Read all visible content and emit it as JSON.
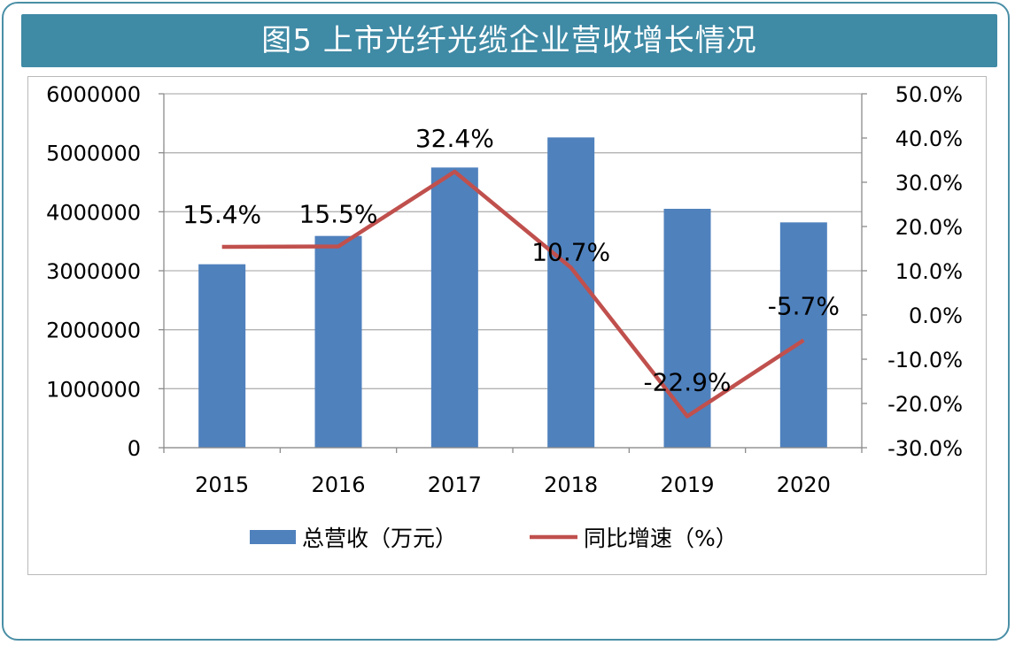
{
  "title": "图5  上市光纤光缆企业营收增长情况",
  "chart_data": {
    "type": "bar",
    "categories": [
      "2015",
      "2016",
      "2017",
      "2018",
      "2019",
      "2020"
    ],
    "series": [
      {
        "name": "总营收（万元）",
        "type": "bar",
        "axis": "left",
        "values": [
          3110000,
          3590000,
          4750000,
          5260000,
          4050000,
          3820000
        ],
        "color": "#4f81bd"
      },
      {
        "name": "同比增速（%）",
        "type": "line",
        "axis": "right",
        "values": [
          15.4,
          15.5,
          32.4,
          10.7,
          -22.9,
          -5.7
        ],
        "labels": [
          "15.4%",
          "15.5%",
          "32.4%",
          "10.7%",
          "-22.9%",
          "-5.7%"
        ],
        "color": "#c0504d"
      }
    ],
    "left_axis": {
      "min": 0,
      "max": 6000000,
      "step": 1000000,
      "ticks": [
        "0",
        "1000000",
        "2000000",
        "3000000",
        "4000000",
        "5000000",
        "6000000"
      ]
    },
    "right_axis": {
      "min": -30,
      "max": 50,
      "step": 10,
      "ticks": [
        "-30.0%",
        "-20.0%",
        "-10.0%",
        "0.0%",
        "10.0%",
        "20.0%",
        "30.0%",
        "40.0%",
        "50.0%"
      ]
    },
    "grid": true,
    "legend": "bottom"
  }
}
